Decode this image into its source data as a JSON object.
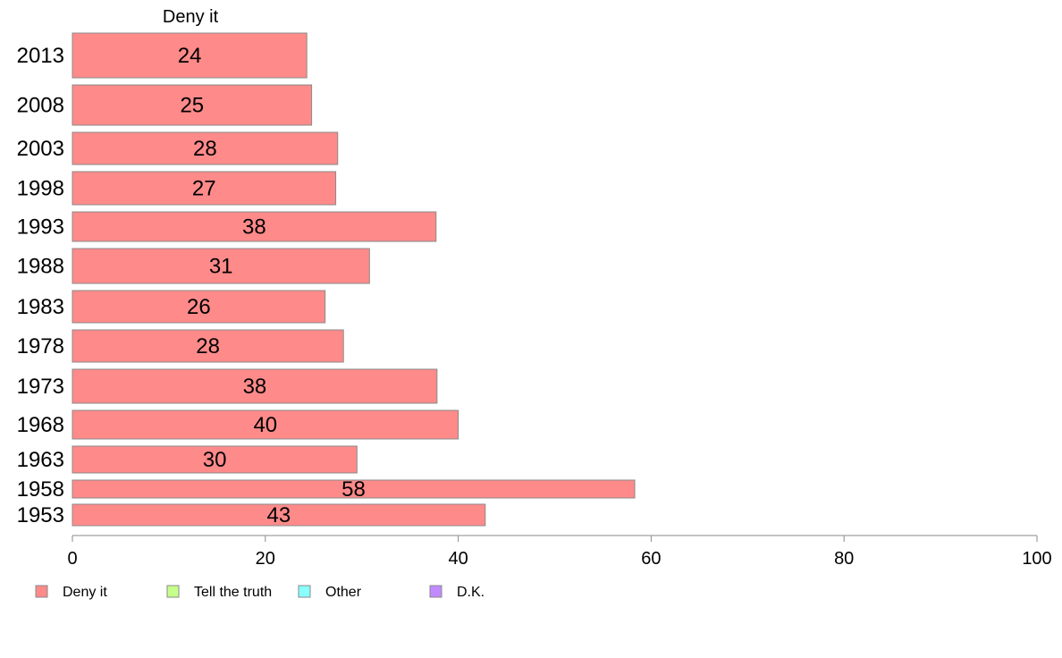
{
  "chart_data": {
    "type": "bar",
    "orientation": "horizontal",
    "title": "Deny it",
    "categories": [
      "2013",
      "2008",
      "2003",
      "1998",
      "1993",
      "1988",
      "1983",
      "1978",
      "1973",
      "1968",
      "1963",
      "1958",
      "1953"
    ],
    "series": [
      {
        "name": "Deny it",
        "color": "#ff8a8a",
        "values": [
          24.3,
          24.8,
          27.5,
          27.3,
          37.7,
          30.8,
          26.2,
          28.1,
          37.8,
          40.0,
          29.5,
          58.3,
          42.8
        ],
        "labels": [
          "24",
          "25",
          "28",
          "27",
          "38",
          "31",
          "26",
          "28",
          "38",
          "40",
          "30",
          "58",
          "43"
        ]
      }
    ],
    "xlim": [
      0,
      100
    ],
    "xticks": [
      "0",
      "20",
      "40",
      "60",
      "80",
      "100"
    ],
    "xlabel": "",
    "ylabel": "",
    "grid": false,
    "legend": {
      "placement": "bottom",
      "entries": [
        {
          "name": "Deny it",
          "color": "#ff8a8a"
        },
        {
          "name": "Tell the truth",
          "color": "#c6ff8a"
        },
        {
          "name": "Other",
          "color": "#8affff"
        },
        {
          "name": "D.K.",
          "color": "#c18aff"
        }
      ]
    }
  }
}
